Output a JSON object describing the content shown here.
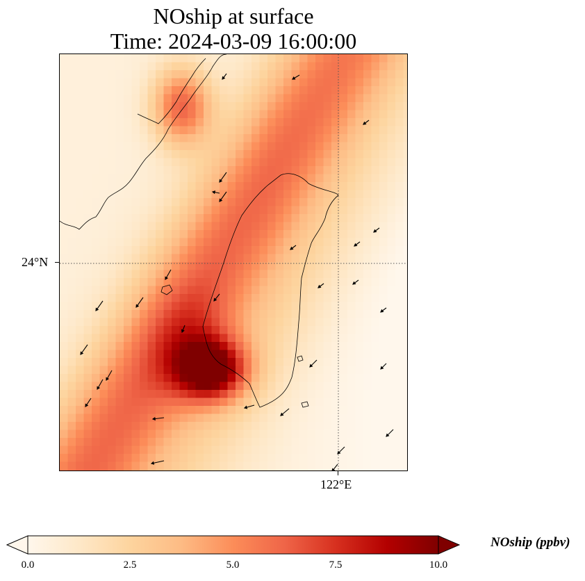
{
  "title": {
    "line1": "NOship at surface",
    "line2": "Time: 2024-03-09 16:00:00"
  },
  "axes": {
    "lat_label": "24°N",
    "lon_label": "122°E",
    "gridline_style": "dotted"
  },
  "colorbar": {
    "label": "NOship (ppbv)",
    "ticks": [
      "0.0",
      "2.5",
      "5.0",
      "7.5",
      "10.0"
    ],
    "min": 0,
    "max": 10,
    "extend": "both",
    "colormap": "OrRd",
    "colors": [
      "#fff7ec",
      "#fee8c8",
      "#fdd49e",
      "#fdbb84",
      "#fc8d59",
      "#ef6548",
      "#d7301f",
      "#b30000",
      "#7f0000"
    ]
  },
  "map": {
    "features": [
      "coastline-taiwan",
      "coastline-fujian",
      "wind-vectors",
      "concentration-field"
    ],
    "high_concentration_regions": [
      "northwest ship lane near Fujian coast",
      "southwest of Taiwan"
    ]
  }
}
